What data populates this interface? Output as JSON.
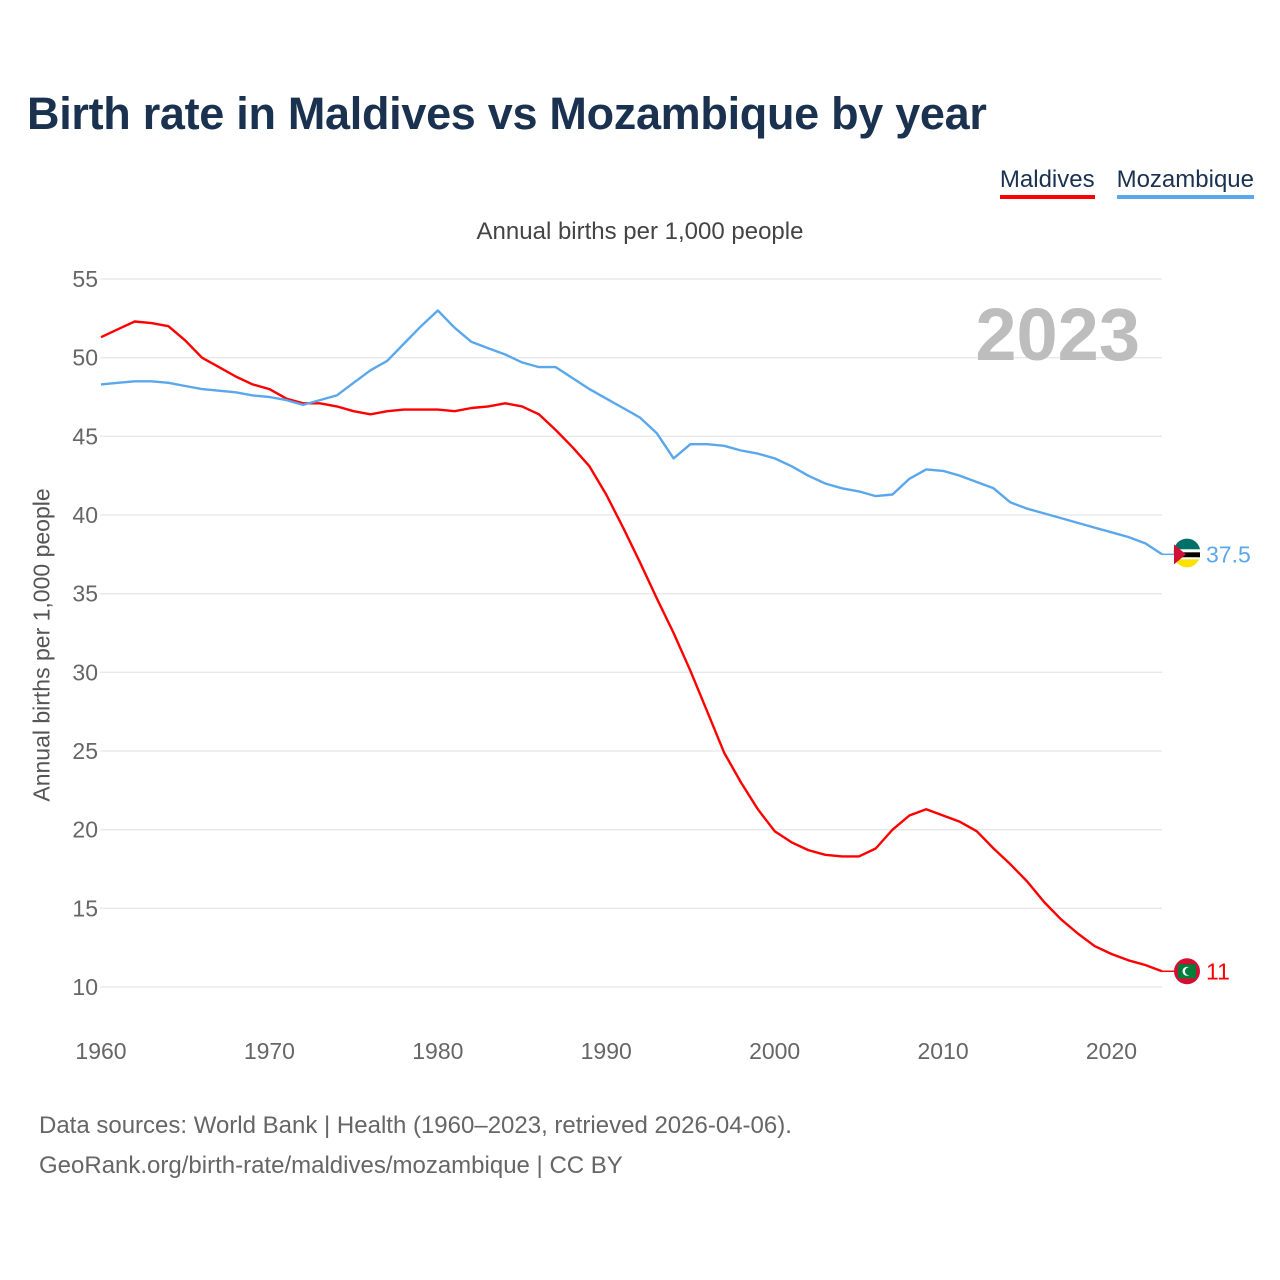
{
  "chart_data": {
    "type": "line",
    "title": "Birth rate in Maldives vs Mozambique by year",
    "subtitle": "Annual births per 1,000 people",
    "xlabel": "",
    "ylabel": "Annual births per 1,000 people",
    "xlim": [
      1960,
      2023
    ],
    "ylim": [
      10,
      55
    ],
    "x_ticks": [
      "1960",
      "1970",
      "1980",
      "1990",
      "2000",
      "2010",
      "2020"
    ],
    "y_ticks": [
      "10",
      "15",
      "20",
      "25",
      "30",
      "35",
      "40",
      "45",
      "50",
      "55"
    ],
    "grid": true,
    "legend_position": "top-right",
    "year_watermark": "2023",
    "x": [
      1960,
      1961,
      1962,
      1963,
      1964,
      1965,
      1966,
      1967,
      1968,
      1969,
      1970,
      1971,
      1972,
      1973,
      1974,
      1975,
      1976,
      1977,
      1978,
      1979,
      1980,
      1981,
      1982,
      1983,
      1984,
      1985,
      1986,
      1987,
      1988,
      1989,
      1990,
      1991,
      1992,
      1993,
      1994,
      1995,
      1996,
      1997,
      1998,
      1999,
      2000,
      2001,
      2002,
      2003,
      2004,
      2005,
      2006,
      2007,
      2008,
      2009,
      2010,
      2011,
      2012,
      2013,
      2014,
      2015,
      2016,
      2017,
      2018,
      2019,
      2020,
      2021,
      2022,
      2023
    ],
    "series": [
      {
        "name": "Maldives",
        "color": "#ff0000",
        "end_label": "11",
        "values": [
          51.3,
          51.8,
          52.3,
          52.2,
          52.0,
          51.1,
          50.0,
          49.4,
          48.8,
          48.3,
          48.0,
          47.4,
          47.1,
          47.1,
          46.9,
          46.6,
          46.4,
          46.6,
          46.7,
          46.7,
          46.7,
          46.6,
          46.8,
          46.9,
          47.1,
          46.9,
          46.4,
          45.4,
          44.3,
          43.1,
          41.3,
          39.2,
          37.0,
          34.7,
          32.5,
          30.1,
          27.5,
          24.9,
          23.0,
          21.3,
          19.9,
          19.2,
          18.7,
          18.4,
          18.3,
          18.3,
          18.8,
          20.0,
          20.9,
          21.3,
          20.9,
          20.5,
          19.9,
          18.8,
          17.8,
          16.7,
          15.4,
          14.3,
          13.4,
          12.6,
          12.1,
          11.7,
          11.4,
          11.0
        ]
      },
      {
        "name": "Mozambique",
        "color": "#5ba7ec",
        "end_label": "37.5",
        "values": [
          48.3,
          48.4,
          48.5,
          48.5,
          48.4,
          48.2,
          48.0,
          47.9,
          47.8,
          47.6,
          47.5,
          47.3,
          47.0,
          47.3,
          47.6,
          48.4,
          49.2,
          49.8,
          50.9,
          52.0,
          53.0,
          51.9,
          51.0,
          50.6,
          50.2,
          49.7,
          49.4,
          49.4,
          48.7,
          48.0,
          47.4,
          46.8,
          46.2,
          45.2,
          43.6,
          44.5,
          44.5,
          44.4,
          44.1,
          43.9,
          43.6,
          43.1,
          42.5,
          42.0,
          41.7,
          41.5,
          41.2,
          41.3,
          42.3,
          42.9,
          42.8,
          42.5,
          42.1,
          41.7,
          40.8,
          40.4,
          40.1,
          39.8,
          39.5,
          39.2,
          38.9,
          38.6,
          38.2,
          37.5
        ]
      }
    ]
  },
  "footer": {
    "line1": "Data sources: World Bank | Health (1960–2023, retrieved 2026-04-06).",
    "line2": "GeoRank.org/birth-rate/maldives/mozambique | CC BY"
  }
}
